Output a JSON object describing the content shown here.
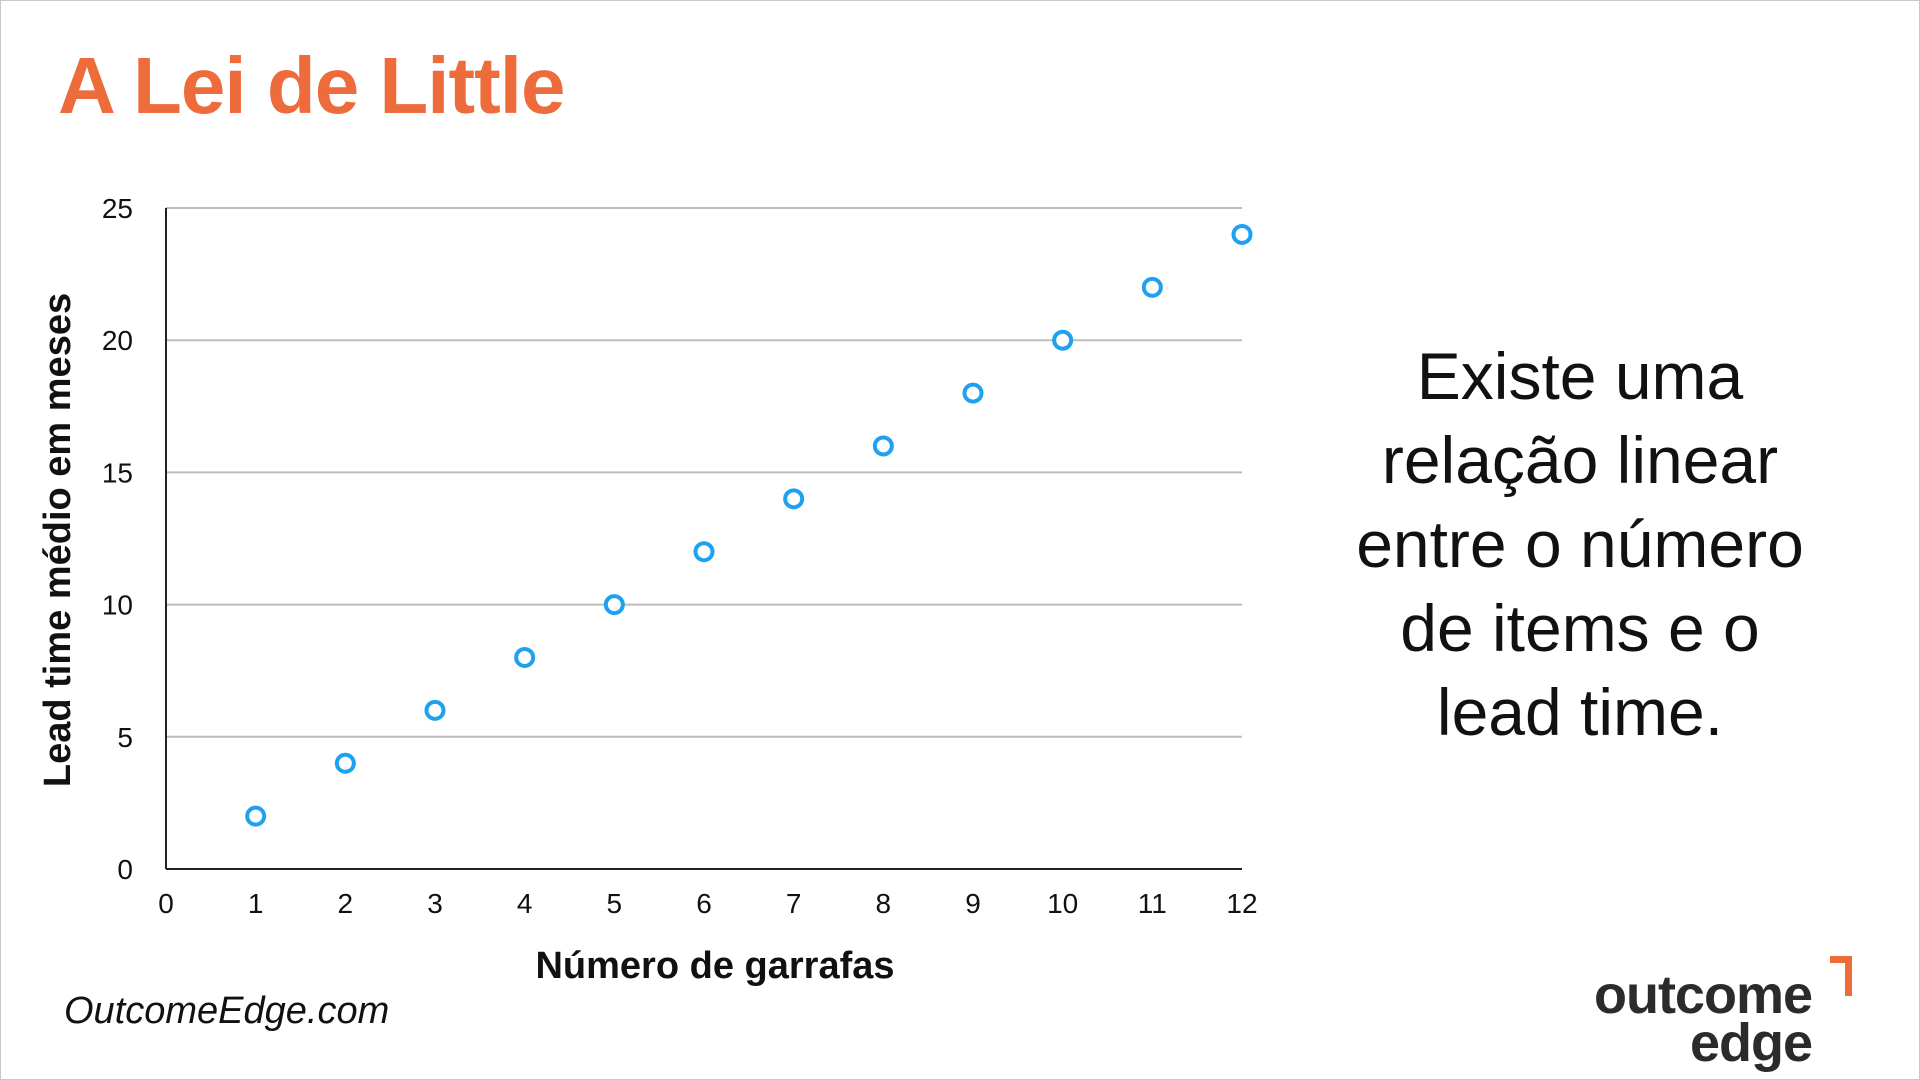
{
  "slide": {
    "title": "A Lei de Little",
    "side_text_lines": [
      "Existe uma",
      "relação linear",
      "entre o número",
      "de items e o",
      "lead time."
    ],
    "footer_url": "OutcomeEdge.com",
    "logo": {
      "line1": "outcome",
      "line2": "edge"
    }
  },
  "colors": {
    "title": "#ee6b3b",
    "marker": "#1ea1f1",
    "grid": "#bdbdbd",
    "logo_accent": "#ee6b3b"
  },
  "chart_data": {
    "type": "scatter",
    "xlabel": "Número de garrafas",
    "ylabel": "Lead time médio em meses",
    "xlim": [
      0,
      12
    ],
    "ylim": [
      0,
      25
    ],
    "xticks": [
      "0",
      "1",
      "2",
      "3",
      "4",
      "5",
      "6",
      "7",
      "8",
      "9",
      "10",
      "11",
      "12"
    ],
    "yticks": [
      "0",
      "5",
      "10",
      "15",
      "20",
      "25"
    ],
    "grid": "horizontal",
    "series": [
      {
        "x": [
          1,
          2,
          3,
          4,
          5,
          6,
          7,
          8,
          9,
          10,
          11,
          12
        ],
        "y": [
          2,
          4,
          6,
          8,
          10,
          12,
          14,
          16,
          18,
          20,
          22,
          24
        ]
      }
    ]
  }
}
